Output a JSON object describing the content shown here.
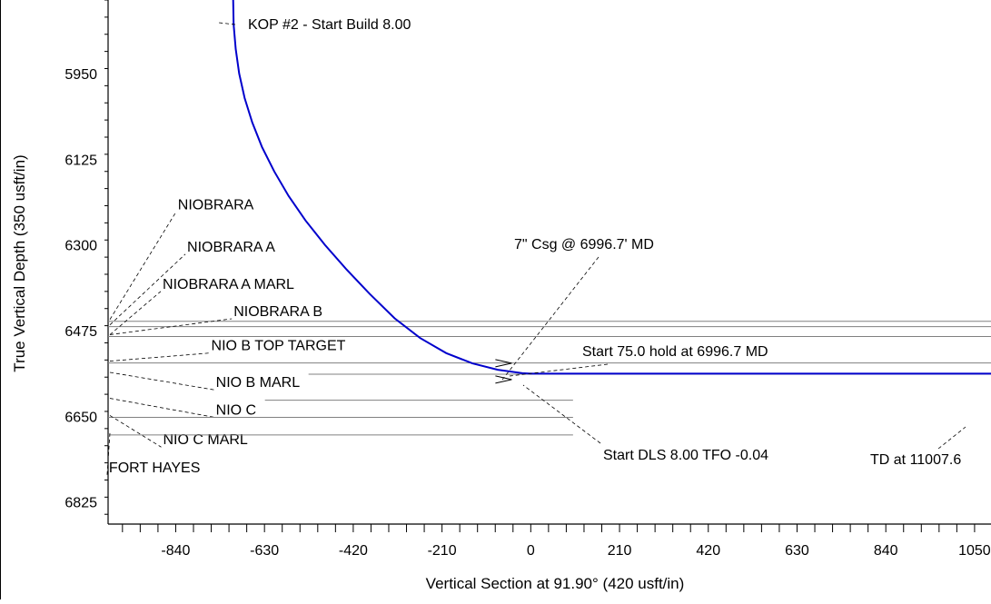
{
  "chart_data": {
    "type": "line",
    "xlabel": "Vertical Section at 91.90° (420 usft/in)",
    "ylabel": "True Vertical Depth (350 usft/in)",
    "xlim": [
      -1000,
      1091
    ],
    "ylim": [
      5800,
      6870
    ],
    "y_inverted": true,
    "grid": false,
    "xticks": [
      -840,
      -630,
      -420,
      -210,
      0,
      210,
      420,
      630,
      840,
      1050
    ],
    "yticks": [
      5950,
      6125,
      6300,
      6475,
      6650,
      6825
    ],
    "well_path_color": "#0000cc",
    "series": [
      {
        "x": [
          -704,
          -703,
          -698,
          -690,
          -677,
          -659,
          -636,
          -607,
          -573,
          -533,
          -487,
          -436,
          -381,
          -322,
          -262,
          -200,
          -138,
          -78,
          -20,
          0,
          150,
          300,
          500,
          700,
          900,
          1091
        ],
        "y": [
          5800,
          5850,
          5900,
          5950,
          6000,
          6050,
          6100,
          6150,
          6200,
          6250,
          6300,
          6350,
          6400,
          6450,
          6490,
          6521,
          6542,
          6555,
          6562,
          6563,
          6563,
          6563,
          6563,
          6563,
          6563,
          6563
        ]
      }
    ],
    "formation_tops": [
      {
        "name": "NIOBRARA",
        "tvd": 6456,
        "label_x": -835,
        "label_y": 6218
      },
      {
        "name": "NIOBRARA A",
        "tvd": 6467,
        "label_x": -813,
        "label_y": 6304
      },
      {
        "name": "NIOBRARA A MARL",
        "tvd": 6487,
        "label_x": -871,
        "label_y": 6380
      },
      {
        "name": "NIOBRARA B",
        "tvd": 6487,
        "label_x": -703,
        "label_y": 6436
      },
      {
        "name": "NIO B TOP TARGET",
        "tvd": 6541,
        "label_x": -756,
        "label_y": 6506
      },
      {
        "name": "NIO B MARL",
        "tvd": 6564,
        "label_x": -745,
        "label_y": 6581
      },
      {
        "name": "NIO C",
        "tvd": 6617,
        "label_x": -745,
        "label_y": 6637
      },
      {
        "name": "NIO C MARL",
        "tvd": 6652,
        "label_x": -870,
        "label_y": 6698
      },
      {
        "name": "FORT HAYES",
        "tvd": 6688,
        "label_x": -998,
        "label_y": 6755
      }
    ],
    "annotations": [
      {
        "text": "KOP #2 - Start Build 8.00",
        "x": -704,
        "y": 5805
      },
      {
        "text": "7\" Csg @ 6996.7' MD",
        "x": -60,
        "y": 6538
      },
      {
        "text": "Start 75.0 hold at 6996.7 MD",
        "x": -40,
        "y": 6545
      },
      {
        "text": "Start DLS 8.00 TFO -0.04",
        "x": 30,
        "y": 6563
      },
      {
        "text": "TD at 11007.6",
        "x": 1091,
        "y": 6563
      }
    ]
  }
}
